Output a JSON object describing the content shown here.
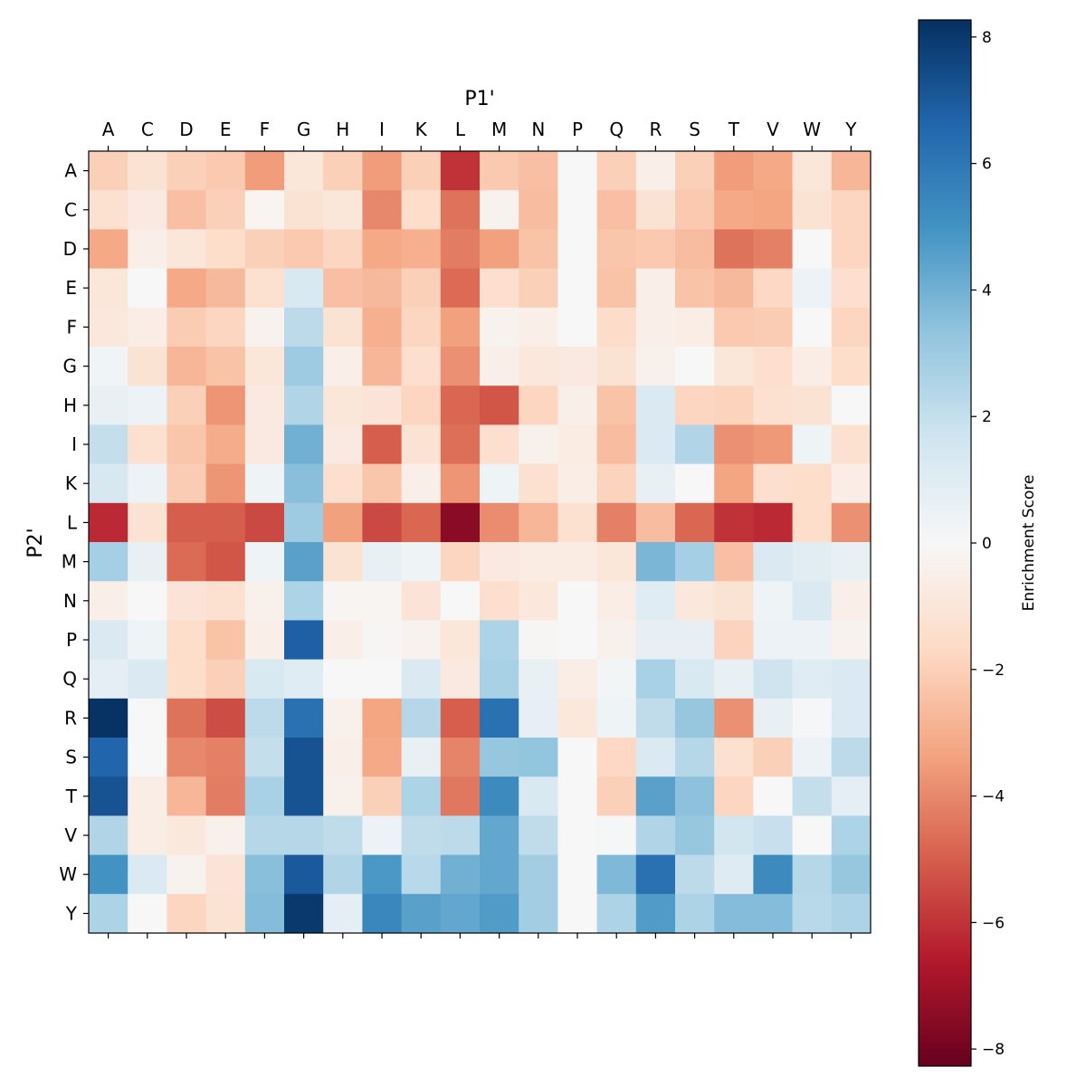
{
  "chart_data": {
    "type": "heatmap",
    "xlabel": "P1'",
    "ylabel": "P2'",
    "x_categories": [
      "A",
      "C",
      "D",
      "E",
      "F",
      "G",
      "H",
      "I",
      "K",
      "L",
      "M",
      "N",
      "P",
      "Q",
      "R",
      "S",
      "T",
      "V",
      "W",
      "Y"
    ],
    "y_categories": [
      "A",
      "C",
      "D",
      "E",
      "F",
      "G",
      "H",
      "I",
      "K",
      "L",
      "M",
      "N",
      "P",
      "Q",
      "R",
      "S",
      "T",
      "V",
      "W",
      "Y"
    ],
    "colormap": "RdBu",
    "vmin": -8.27,
    "vmax": 8.27,
    "colorbar": {
      "label": "Enrichment Score",
      "ticks": [
        -8,
        -6,
        -4,
        -2,
        0,
        2,
        4,
        6,
        8
      ],
      "tick_labels": [
        "−8",
        "−6",
        "−4",
        "−2",
        "0",
        "2",
        "4",
        "6",
        "8"
      ]
    },
    "values": [
      [
        -2,
        -1.2,
        -2,
        -2.2,
        -3.5,
        -1,
        -2,
        -3.5,
        -2,
        -6,
        -2.2,
        -2.5,
        0,
        -2,
        -0.5,
        -2,
        -3.5,
        -3.2,
        -1,
        -2.8
      ],
      [
        -1.3,
        -0.8,
        -2.5,
        -2,
        -0.2,
        -1.2,
        -1,
        -4,
        -1.5,
        -4.5,
        -0.3,
        -2.6,
        0,
        -2.5,
        -1.2,
        -2.2,
        -3.2,
        -3.3,
        -1.2,
        -1.8
      ],
      [
        -3.2,
        -0.5,
        -1,
        -1.5,
        -2,
        -2.2,
        -1.8,
        -3.2,
        -3,
        -4.3,
        -3.4,
        -2.4,
        0,
        -2.3,
        -2.2,
        -2.6,
        -4.5,
        -4.2,
        0,
        -1.8
      ],
      [
        -1,
        0,
        -3.2,
        -2.7,
        -1.3,
        1.3,
        -2.5,
        -2.7,
        -2,
        -4.7,
        -1.4,
        -2,
        0,
        -2.4,
        -0.5,
        -2.4,
        -2.7,
        -1.7,
        0.5,
        -1.4
      ],
      [
        -0.9,
        -0.6,
        -2.1,
        -1.8,
        -0.3,
        2.2,
        -1.2,
        -3,
        -1.8,
        -3.4,
        -0.3,
        -0.5,
        0,
        -1.6,
        -0.5,
        -0.6,
        -2.2,
        -2.1,
        0,
        -1.8
      ],
      [
        0.3,
        -1.2,
        -2.8,
        -2.4,
        -1,
        3,
        -0.5,
        -2.8,
        -1.4,
        -3.8,
        -0.5,
        -0.9,
        -0.8,
        -1.2,
        -0.4,
        0,
        -1,
        -1.4,
        -0.6,
        -1.5
      ],
      [
        0.6,
        0.5,
        -2,
        -3.7,
        -0.8,
        2.5,
        -1,
        -1.1,
        -1.8,
        -4.8,
        -5.2,
        -1.8,
        -0.5,
        -2.4,
        1.2,
        -1.8,
        -1.9,
        -1.3,
        -1.2,
        0
      ],
      [
        2,
        -1.3,
        -2.3,
        -3.1,
        -0.8,
        4,
        -0.8,
        -5,
        -1.2,
        -4.6,
        -1.4,
        -0.4,
        -0.7,
        -2.6,
        1.2,
        2.5,
        -3.8,
        -3.6,
        0.4,
        -1.3
      ],
      [
        1.4,
        0.5,
        -2.1,
        -3.7,
        0.4,
        3.5,
        -1.4,
        -2.3,
        -0.5,
        -3.7,
        0.4,
        -1.3,
        -0.6,
        -1.9,
        0.6,
        0,
        -3.3,
        -1.4,
        -1.5,
        -0.6
      ],
      [
        -6.2,
        -1.2,
        -5,
        -5,
        -5.5,
        3,
        -3.4,
        -5.5,
        -4.8,
        -7.5,
        -3.9,
        -2.8,
        -1.3,
        -4.2,
        -2.6,
        -4.8,
        -6,
        -6.2,
        -1.5,
        -3.8
      ],
      [
        2.8,
        0.6,
        -4.7,
        -5.2,
        0.4,
        4.5,
        -1.2,
        0.6,
        0.4,
        -1.8,
        -0.8,
        -0.7,
        -0.7,
        -1,
        3.8,
        2.8,
        -2.5,
        1.2,
        0.9,
        0.6
      ],
      [
        -0.5,
        0,
        -1.1,
        -1.3,
        -0.4,
        2.6,
        -0.2,
        -0.2,
        -1.1,
        0,
        -1.4,
        -0.9,
        0,
        -0.6,
        1,
        -0.9,
        -1.2,
        0.4,
        1.2,
        -0.5
      ],
      [
        1.2,
        0.4,
        -1.5,
        -2.4,
        -0.5,
        6.8,
        -0.5,
        -0.1,
        -0.3,
        -1,
        2.6,
        -0.1,
        0,
        -0.4,
        0.7,
        0.7,
        -1.9,
        0.5,
        0.5,
        -0.3
      ],
      [
        0.8,
        1.2,
        -1.5,
        -2,
        1.3,
        1,
        0,
        0,
        1.2,
        -0.8,
        2.7,
        0.6,
        -0.6,
        0.2,
        2.7,
        1.3,
        0.6,
        1.7,
        1,
        1.2
      ],
      [
        8.2,
        0,
        -4.5,
        -5.4,
        2.2,
        6.2,
        -0.4,
        -3.3,
        2.4,
        -5,
        6.2,
        0.7,
        -0.9,
        0.4,
        2.1,
        3.2,
        -3.8,
        0.6,
        0.1,
        1.2
      ],
      [
        6.6,
        0,
        -4,
        -4.2,
        2,
        7.2,
        -0.5,
        -3.2,
        0.6,
        -4.1,
        3.2,
        3.3,
        0,
        -1.7,
        1.2,
        2.4,
        -1.3,
        -2,
        0.5,
        2.2
      ],
      [
        7.2,
        -0.6,
        -2.8,
        -4.3,
        2.7,
        7.2,
        -0.4,
        -2,
        2.6,
        -4.4,
        5.3,
        1.3,
        0,
        -2,
        4.5,
        3.4,
        -1.8,
        0,
        2,
        0.8
      ],
      [
        2.5,
        -0.6,
        -0.9,
        -0.4,
        2.4,
        2.4,
        2.1,
        0.5,
        2.1,
        2.2,
        4.3,
        2.1,
        0,
        0.1,
        2.5,
        3.2,
        1.6,
        1.9,
        0,
        2.6
      ],
      [
        5,
        1.2,
        -0.3,
        -1.1,
        3.5,
        7,
        2.5,
        4.8,
        2.3,
        4,
        4.3,
        2.9,
        0,
        3.7,
        6.2,
        2.2,
        1.1,
        5.3,
        2.4,
        3.2
      ],
      [
        2.6,
        0,
        -1.8,
        -1.2,
        3.6,
        8,
        0.8,
        5.4,
        4.5,
        4.3,
        4.7,
        2.9,
        0,
        2.6,
        4.7,
        2.6,
        3.6,
        3.6,
        2.3,
        2.6
      ]
    ]
  }
}
